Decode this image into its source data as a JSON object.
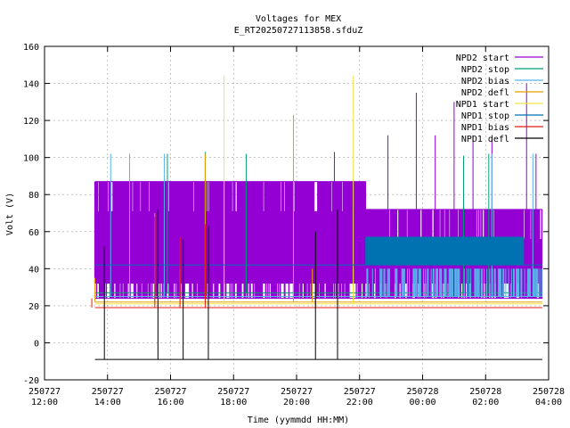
{
  "chart_data": {
    "type": "line",
    "title": "Voltages for MEX",
    "subtitle": "E_RT20250727113858.sfduZ",
    "xlabel": "Time (yymmdd HH:MM)",
    "ylabel": "Volt (V)",
    "xlim": [
      "2025-07-27 12:00",
      "2025-07-28 04:00"
    ],
    "ylim": [
      -20,
      160
    ],
    "y_ticks": [
      -20,
      0,
      20,
      40,
      60,
      80,
      100,
      120,
      140,
      160
    ],
    "x_ticks": [
      {
        "date": "250727",
        "time": "12:00",
        "hour": 12
      },
      {
        "date": "250727",
        "time": "14:00",
        "hour": 14
      },
      {
        "date": "250727",
        "time": "16:00",
        "hour": 16
      },
      {
        "date": "250727",
        "time": "18:00",
        "hour": 18
      },
      {
        "date": "250727",
        "time": "20:00",
        "hour": 20
      },
      {
        "date": "250727",
        "time": "22:00",
        "hour": 22
      },
      {
        "date": "250728",
        "time": "00:00",
        "hour": 24
      },
      {
        "date": "250728",
        "time": "02:00",
        "hour": 26
      },
      {
        "date": "250728",
        "time": "04:00",
        "hour": 28
      }
    ],
    "grid": true,
    "legend_position": "top-right",
    "series": [
      {
        "name": "NPD2 start",
        "color": "#9400d3",
        "baseline": 24,
        "high_level": 87,
        "high_level_late": 72,
        "spikes": [
          {
            "hour": 21.2,
            "value": 103
          },
          {
            "hour": 22.9,
            "value": 112
          },
          {
            "hour": 23.8,
            "value": 135
          },
          {
            "hour": 24.4,
            "value": 112
          },
          {
            "hour": 25.0,
            "value": 130
          },
          {
            "hour": 25.6,
            "value": 112
          },
          {
            "hour": 26.2,
            "value": 110
          },
          {
            "hour": 27.3,
            "value": 140
          },
          {
            "hour": 27.6,
            "value": 102
          }
        ]
      },
      {
        "name": "NPD2 stop",
        "color": "#009e73",
        "baseline": 27,
        "spikes": [
          {
            "hour": 15.9,
            "value": 102
          },
          {
            "hour": 17.1,
            "value": 103
          },
          {
            "hour": 18.4,
            "value": 102
          },
          {
            "hour": 25.3,
            "value": 101
          },
          {
            "hour": 26.1,
            "value": 102
          }
        ]
      },
      {
        "name": "NPD2 bias",
        "color": "#56b4e9",
        "baseline": 25,
        "level_late": 40,
        "spikes": [
          {
            "hour": 14.1,
            "value": 102
          },
          {
            "hour": 14.7,
            "value": 102
          },
          {
            "hour": 15.8,
            "value": 102
          },
          {
            "hour": 26.2,
            "value": 102
          },
          {
            "hour": 27.5,
            "value": 102
          }
        ]
      },
      {
        "name": "NPD2 defl",
        "color": "#e69f00",
        "baseline": 22,
        "spikes": [
          {
            "hour": 13.6,
            "value": 35
          },
          {
            "hour": 15.5,
            "value": 70
          },
          {
            "hour": 16.3,
            "value": 40
          },
          {
            "hour": 17.1,
            "value": 102
          },
          {
            "hour": 19.9,
            "value": 123
          },
          {
            "hour": 20.5,
            "value": 40
          },
          {
            "hour": 21.8,
            "value": 40
          }
        ]
      },
      {
        "name": "NPD1 start",
        "color": "#f0e442",
        "baseline": 21,
        "spikes": [
          {
            "hour": 17.7,
            "value": 144
          },
          {
            "hour": 21.8,
            "value": 144
          }
        ]
      },
      {
        "name": "NPD1 stop",
        "color": "#0072b2",
        "baseline": 42,
        "band_level": 57,
        "band_hours": [
          22.2,
          27.2
        ]
      },
      {
        "name": "NPD1 bias",
        "color": "#e51e10",
        "baseline": 19,
        "spikes": [
          {
            "hour": 13.5,
            "value": 24
          },
          {
            "hour": 15.5,
            "value": 68
          },
          {
            "hour": 16.3,
            "value": 57
          },
          {
            "hour": 17.1,
            "value": 64
          },
          {
            "hour": 20.6,
            "value": 42
          },
          {
            "hour": 21.3,
            "value": 44
          }
        ]
      },
      {
        "name": "NPD1 defl",
        "color": "#000000",
        "baseline": -9,
        "spikes": [
          {
            "hour": 13.9,
            "value": 52
          },
          {
            "hour": 15.6,
            "value": 72
          },
          {
            "hour": 16.4,
            "value": 56
          },
          {
            "hour": 17.2,
            "value": 63
          },
          {
            "hour": 20.6,
            "value": 60
          },
          {
            "hour": 21.3,
            "value": 72
          }
        ]
      }
    ],
    "data_range_hours": [
      13.6,
      27.8
    ]
  }
}
